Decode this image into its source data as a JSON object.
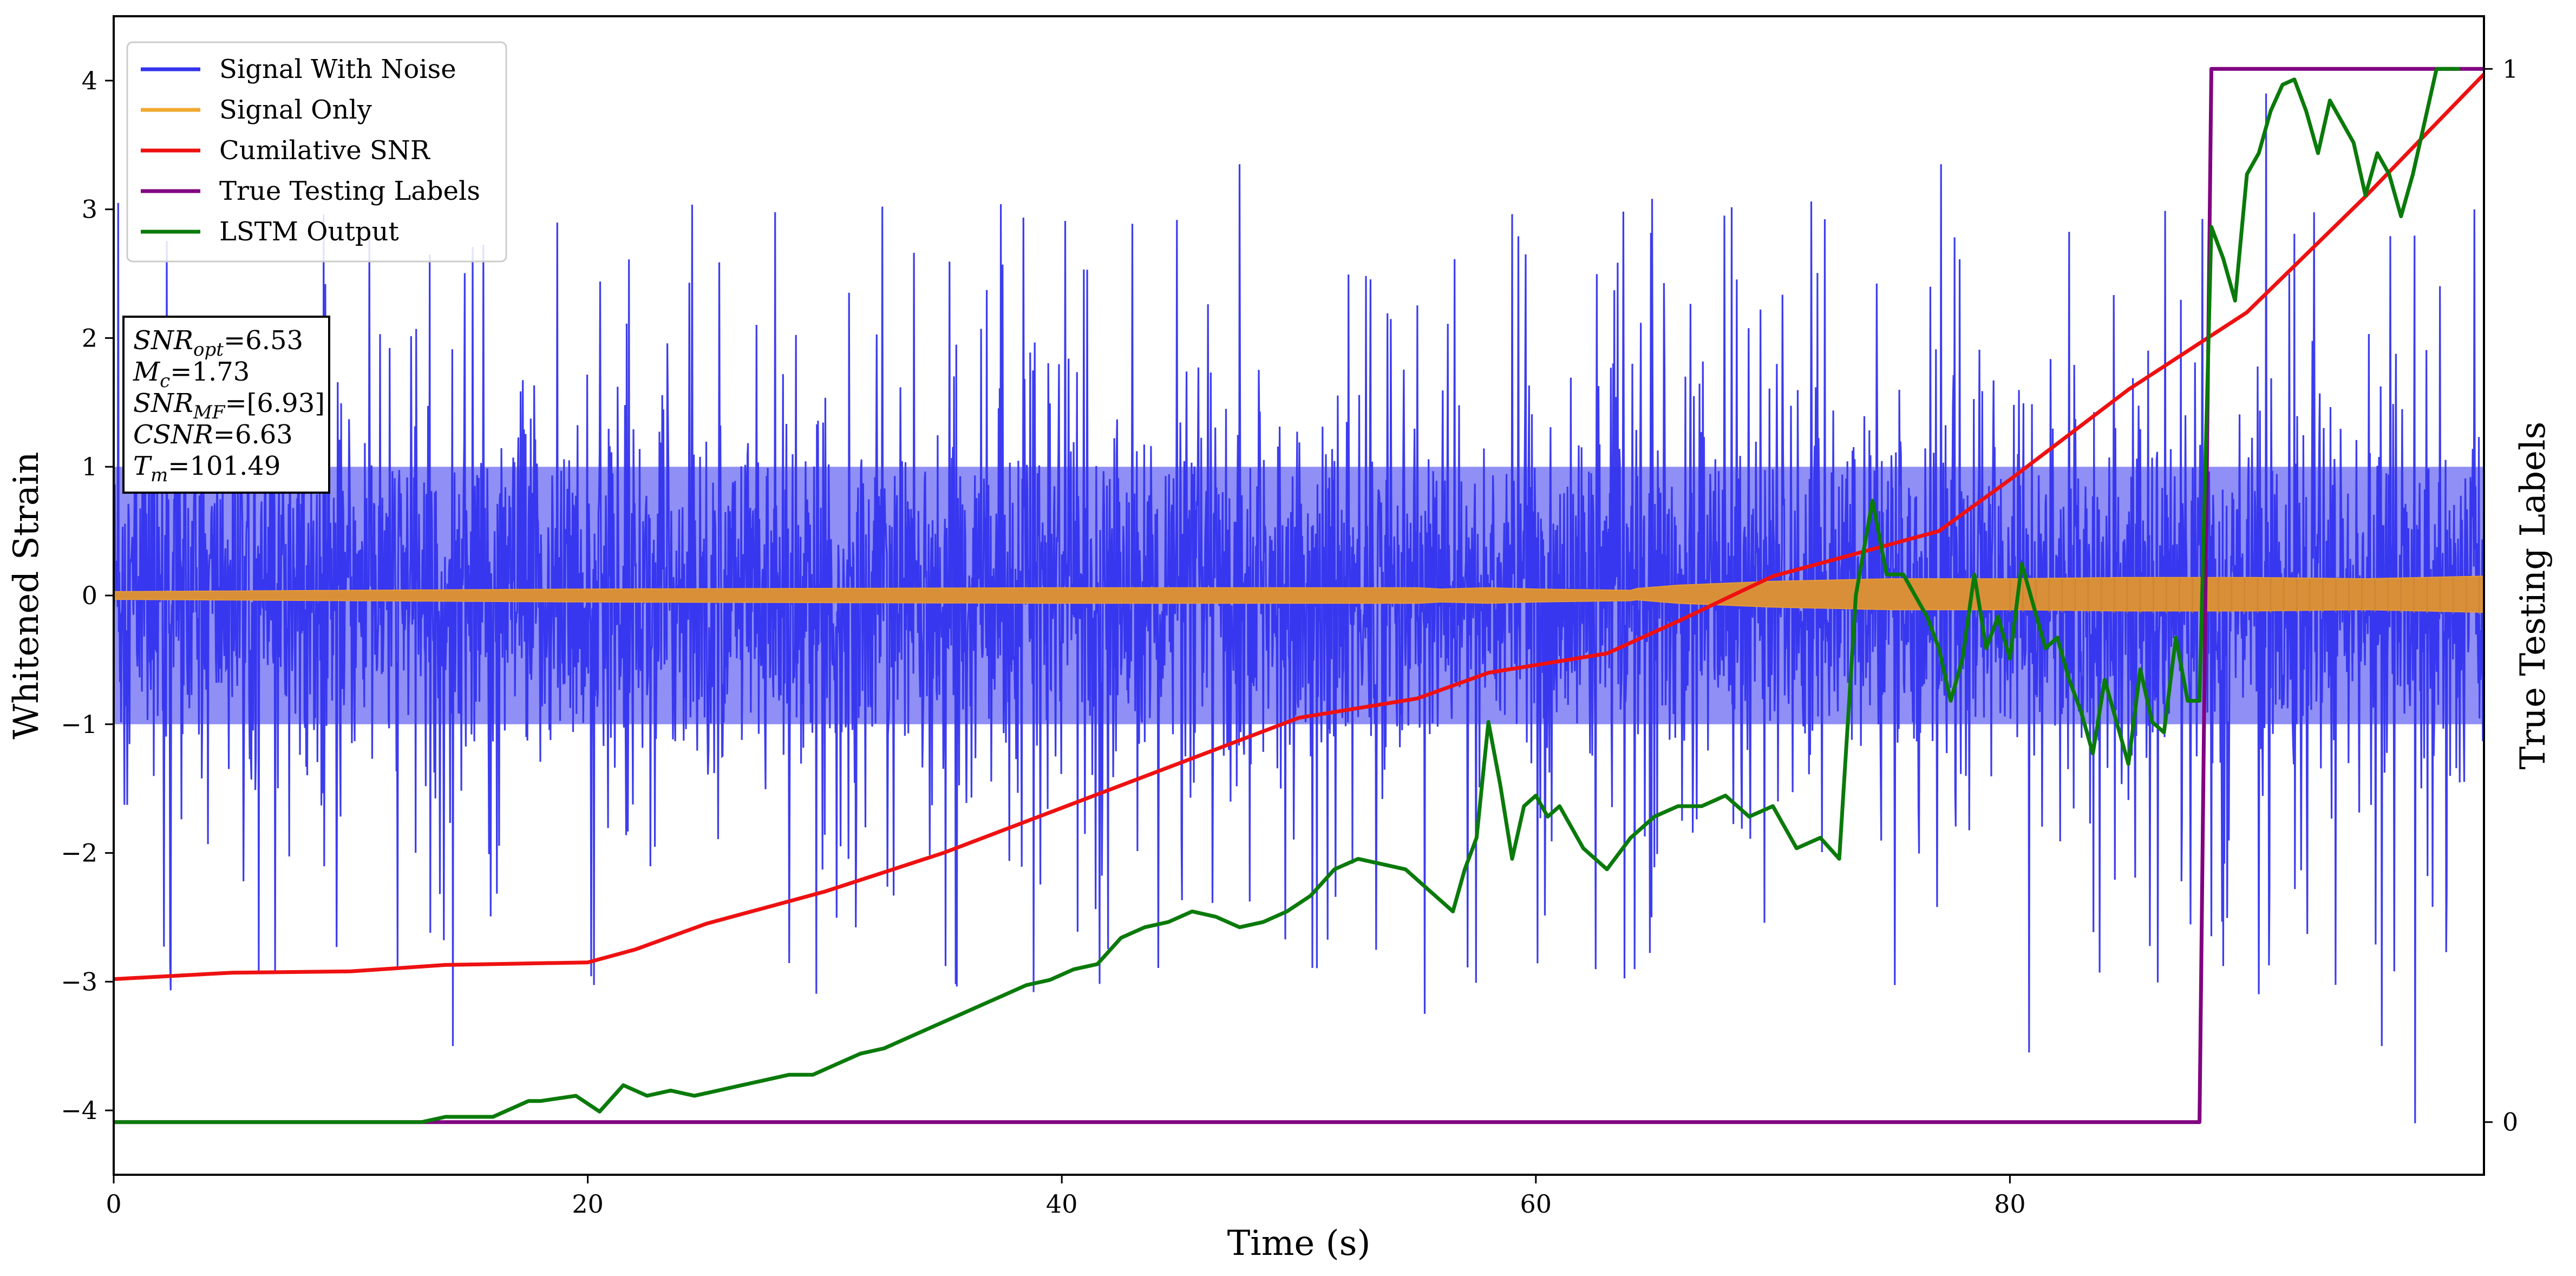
{
  "chart_data": {
    "type": "line",
    "title": "",
    "xlabel": "Time (s)",
    "ylabel": "Whitened Strain",
    "y2label": "True Testing Labels",
    "xlim": [
      0,
      100
    ],
    "ylim": [
      -4.5,
      4.5
    ],
    "y2lim": [
      -0.05,
      1.05
    ],
    "xticks": [
      0,
      20,
      40,
      60,
      80
    ],
    "yticks": [
      -4,
      -3,
      -2,
      -1,
      0,
      1,
      2,
      3,
      4
    ],
    "y2ticks": [
      0,
      1
    ],
    "grid": false,
    "legend_position": "top-left",
    "legend": [
      {
        "name": "Signal With Noise",
        "color": "#3333ee"
      },
      {
        "name": "Signal Only",
        "color": "#f0a830"
      },
      {
        "name": "Cumilative SNR",
        "color": "#ee1111"
      },
      {
        "name": "True Testing Labels",
        "color": "#800080"
      },
      {
        "name": "LSTM Output",
        "color": "#0a7a0a"
      }
    ],
    "annotation": {
      "lines": [
        {
          "sym": "SNR",
          "sub": "opt",
          "value": "=6.53"
        },
        {
          "sym": "M",
          "sub": "c",
          "value": "=1.73"
        },
        {
          "sym": "SNR",
          "sub": "MF",
          "value": "=[6.93]"
        },
        {
          "sym": "CSNR",
          "sub": "",
          "value": "=6.63"
        },
        {
          "sym": "T",
          "sub": "m",
          "value": "=101.49"
        }
      ]
    },
    "series": [
      {
        "name": "Signal With Noise",
        "axis": "left",
        "color": "#3333ee",
        "style": "dense-noise",
        "envelope_typical": [
          -1.4,
          1.4
        ],
        "extremes": {
          "x": [
            0.2,
            14.3,
            47.5,
            55.3,
            77.1,
            80.8,
            90.8,
            95.7,
            97.1,
            99.6
          ],
          "y": [
            3.05,
            -3.5,
            3.35,
            -3.25,
            3.35,
            -3.55,
            3.9,
            -3.5,
            -4.1,
            3.0
          ]
        }
      },
      {
        "name": "Signal Only",
        "axis": "left",
        "color": "#f0a830",
        "style": "chirp-band",
        "x": [
          0,
          20,
          40,
          55,
          56,
          58,
          60,
          64,
          66,
          70,
          75,
          80,
          85,
          90,
          95,
          100
        ],
        "amplitude": [
          0.03,
          0.05,
          0.06,
          0.06,
          0.05,
          0.06,
          0.05,
          0.04,
          0.07,
          0.1,
          0.12,
          0.12,
          0.13,
          0.13,
          0.12,
          0.14
        ]
      },
      {
        "name": "Cumilative SNR",
        "axis": "left",
        "color": "#ee1111",
        "x": [
          0,
          5,
          10,
          14,
          20,
          22,
          25,
          30,
          35,
          40,
          45,
          50,
          55,
          58,
          63,
          66,
          70,
          75,
          77,
          80,
          85,
          90,
          95,
          100
        ],
        "y": [
          -2.98,
          -2.93,
          -2.92,
          -2.87,
          -2.85,
          -2.75,
          -2.55,
          -2.3,
          -2.0,
          -1.65,
          -1.3,
          -0.95,
          -0.8,
          -0.6,
          -0.45,
          -0.2,
          0.15,
          0.4,
          0.5,
          0.9,
          1.6,
          2.2,
          3.1,
          4.05
        ]
      },
      {
        "name": "True Testing Labels",
        "axis": "right",
        "color": "#800080",
        "x": [
          0,
          88.0,
          88.5,
          100
        ],
        "y": [
          0,
          0,
          1,
          1
        ]
      },
      {
        "name": "LSTM Output",
        "axis": "right",
        "color": "#0a7a0a",
        "x": [
          0,
          13.0,
          14.0,
          16.0,
          17.5,
          18.0,
          19.5,
          20.5,
          21.5,
          22.5,
          23.5,
          24.5,
          25.5,
          26.5,
          27.5,
          28.5,
          29.5,
          30.5,
          31.5,
          32.5,
          33.5,
          34.5,
          35.5,
          36.5,
          37.5,
          38.5,
          39.5,
          40.5,
          41.5,
          42.5,
          43.5,
          44.5,
          45.5,
          46.5,
          47.5,
          48.5,
          49.5,
          50.5,
          51.5,
          52.5,
          53.5,
          54.5,
          55.5,
          56.5,
          57.0,
          57.5,
          58.0,
          58.5,
          59.0,
          59.5,
          60.0,
          60.5,
          61.0,
          62.0,
          63.0,
          64.0,
          65.0,
          66.0,
          67.0,
          68.0,
          69.0,
          70.0,
          71.0,
          72.0,
          72.8,
          73.5,
          74.2,
          74.8,
          75.5,
          76.0,
          76.5,
          77.0,
          77.5,
          78.0,
          78.5,
          79.0,
          79.5,
          80.0,
          80.5,
          81.0,
          81.5,
          82.0,
          82.5,
          83.0,
          83.5,
          84.0,
          84.5,
          85.0,
          85.5,
          86.0,
          86.5,
          87.0,
          87.5,
          88.0,
          88.5,
          89.0,
          89.5,
          90.0,
          90.5,
          91.0,
          91.5,
          92.0,
          92.5,
          93.0,
          93.5,
          94.0,
          94.5,
          95.0,
          95.5,
          96.0,
          96.5,
          97.0,
          97.5,
          98.0,
          98.5,
          99.0
        ],
        "y": [
          0.0,
          0.0,
          0.005,
          0.005,
          0.02,
          0.02,
          0.025,
          0.01,
          0.035,
          0.025,
          0.03,
          0.025,
          0.03,
          0.035,
          0.04,
          0.045,
          0.045,
          0.055,
          0.065,
          0.07,
          0.08,
          0.09,
          0.1,
          0.11,
          0.12,
          0.13,
          0.135,
          0.145,
          0.15,
          0.175,
          0.185,
          0.19,
          0.2,
          0.195,
          0.185,
          0.19,
          0.2,
          0.215,
          0.24,
          0.25,
          0.245,
          0.24,
          0.22,
          0.2,
          0.24,
          0.27,
          0.38,
          0.32,
          0.25,
          0.3,
          0.31,
          0.29,
          0.3,
          0.26,
          0.24,
          0.27,
          0.29,
          0.3,
          0.3,
          0.31,
          0.29,
          0.3,
          0.26,
          0.27,
          0.25,
          0.5,
          0.59,
          0.52,
          0.52,
          0.5,
          0.48,
          0.45,
          0.4,
          0.44,
          0.52,
          0.45,
          0.48,
          0.44,
          0.53,
          0.49,
          0.45,
          0.46,
          0.42,
          0.39,
          0.35,
          0.42,
          0.38,
          0.34,
          0.43,
          0.38,
          0.37,
          0.46,
          0.4,
          0.4,
          0.85,
          0.82,
          0.78,
          0.9,
          0.92,
          0.96,
          0.985,
          0.99,
          0.96,
          0.92,
          0.97,
          0.95,
          0.93,
          0.88,
          0.92,
          0.9,
          0.86,
          0.9,
          0.95,
          1.0,
          1.0,
          1.0
        ]
      }
    ]
  }
}
